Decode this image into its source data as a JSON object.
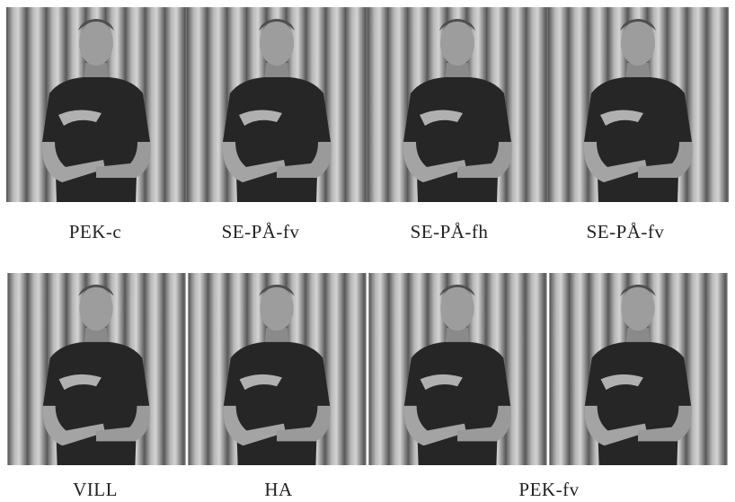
{
  "rows": [
    {
      "labels": [
        "PEK-c",
        "SE-PÅ-fv",
        "SE-PÅ-fh",
        "SE-PÅ-fv"
      ]
    },
    {
      "labels": [
        "VILL",
        "HA",
        "PEK-fv"
      ]
    }
  ]
}
